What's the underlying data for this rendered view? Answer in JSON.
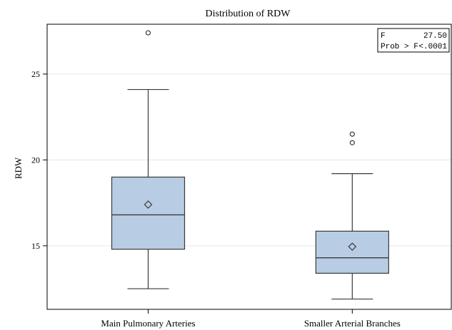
{
  "chart_data": {
    "type": "box",
    "title": "Distribution of RDW",
    "xlabel": "",
    "ylabel": "RDW",
    "ylim": [
      11.3,
      27.9
    ],
    "y_ticks": [
      15,
      20,
      25
    ],
    "grid": true,
    "categories": [
      "Main Pulmonary Arteries",
      "Smaller Arterial Branches"
    ],
    "boxes": [
      {
        "category": "Main Pulmonary Arteries",
        "whisker_low": 12.5,
        "q1": 14.8,
        "median": 16.8,
        "mean": 17.4,
        "q3": 19.0,
        "whisker_high": 24.1,
        "outliers": [
          27.4
        ]
      },
      {
        "category": "Smaller Arterial Branches",
        "whisker_low": 11.9,
        "q1": 13.4,
        "median": 14.3,
        "mean": 14.95,
        "q3": 15.85,
        "whisker_high": 19.2,
        "outliers": [
          21.0,
          21.5
        ]
      }
    ],
    "stats_box": {
      "position": "top-right",
      "rows": [
        {
          "label": "F",
          "value": "27.50"
        },
        {
          "label": "Prob > F",
          "value": "<.0001"
        }
      ]
    },
    "colors": {
      "box_fill": "#b8cce4",
      "box_stroke": "#3a3a3a",
      "grid": "#e6e6e6"
    }
  }
}
